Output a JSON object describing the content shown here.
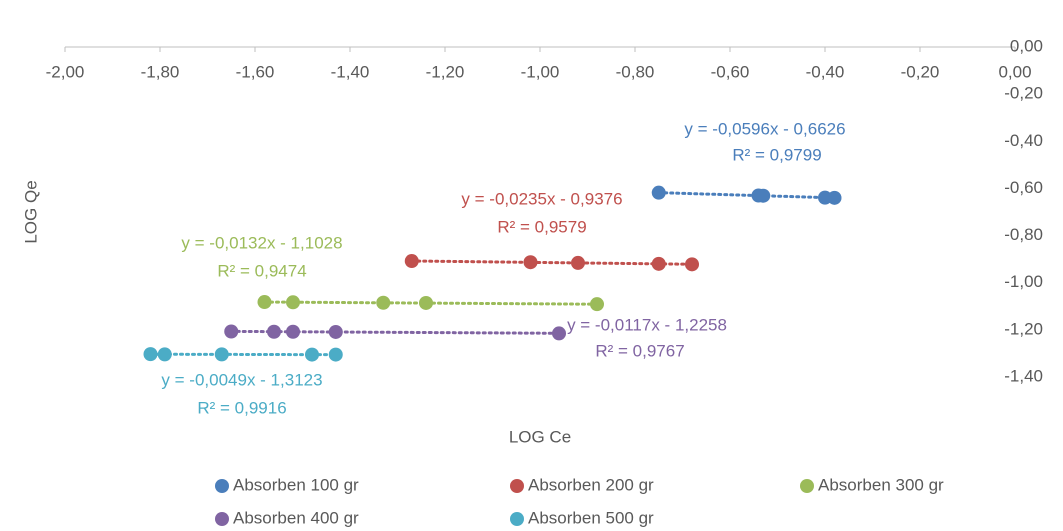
{
  "chart_data": {
    "type": "scatter",
    "xlabel": "LOG Ce",
    "ylabel": "LOG Qe",
    "xlim": [
      -2,
      0
    ],
    "ylim": [
      -1.4,
      0
    ],
    "xticks": [
      {
        "value": -2,
        "label": "-2,00"
      },
      {
        "value": -1.8,
        "label": "-1,80"
      },
      {
        "value": -1.6,
        "label": "-1,60"
      },
      {
        "value": -1.4,
        "label": "-1,40"
      },
      {
        "value": -1.2,
        "label": "-1,20"
      },
      {
        "value": -1,
        "label": "-1,00"
      },
      {
        "value": -0.8,
        "label": "-0,80"
      },
      {
        "value": -0.6,
        "label": "-0,60"
      },
      {
        "value": -0.4,
        "label": "-0,40"
      },
      {
        "value": -0.2,
        "label": "-0,20"
      },
      {
        "value": 0,
        "label": "0,00"
      }
    ],
    "yticks": [
      {
        "value": 0,
        "label": "0,00"
      },
      {
        "value": -0.2,
        "label": "-0,20"
      },
      {
        "value": -0.4,
        "label": "-0,40"
      },
      {
        "value": -0.6,
        "label": "-0,60"
      },
      {
        "value": -0.8,
        "label": "-0,80"
      },
      {
        "value": -1,
        "label": "-1,00"
      },
      {
        "value": -1.2,
        "label": "-1,20"
      },
      {
        "value": -1.4,
        "label": "-1,40"
      }
    ],
    "legend": "bottom",
    "series": [
      {
        "name": "Absorben 100 gr",
        "color": "#4a7ebb",
        "x": [
          -0.75,
          -0.54,
          -0.53,
          -0.4,
          -0.38
        ],
        "values": [
          -0.618,
          -0.63,
          -0.631,
          -0.639,
          -0.64
        ],
        "trendline": {
          "slope": -0.0596,
          "intercept": -0.6626,
          "equation": "y = -0,0596x - 0,6626",
          "r2": "R² = 0,9799"
        }
      },
      {
        "name": "Absorben 200 gr",
        "color": "#c0504d",
        "x": [
          -1.27,
          -1.02,
          -0.92,
          -0.75,
          -0.68
        ],
        "values": [
          -0.908,
          -0.913,
          -0.916,
          -0.92,
          -0.922
        ],
        "trendline": {
          "slope": -0.0235,
          "intercept": -0.9376,
          "equation": "y = -0,0235x - 0,9376",
          "r2": "R² = 0,9579"
        }
      },
      {
        "name": "Absorben 300 gr",
        "color": "#9bbb59",
        "x": [
          -1.58,
          -1.52,
          -1.33,
          -1.24,
          -0.88
        ],
        "values": [
          -1.082,
          -1.083,
          -1.085,
          -1.086,
          -1.091
        ],
        "trendline": {
          "slope": -0.0132,
          "intercept": -1.1028,
          "equation": "y = -0,0132x - 1,1028",
          "r2": "R² = 0,9474"
        }
      },
      {
        "name": "Absorben 400 gr",
        "color": "#8064a2",
        "x": [
          -1.65,
          -1.56,
          -1.52,
          -1.43,
          -0.96
        ],
        "values": [
          -1.207,
          -1.208,
          -1.208,
          -1.209,
          -1.215
        ],
        "trendline": {
          "slope": -0.0117,
          "intercept": -1.2258,
          "equation": "y = -0,0117x - 1,2258",
          "r2": "R² = 0,9767"
        }
      },
      {
        "name": "Absorben 500 gr",
        "color": "#4bacc6",
        "x": [
          -1.82,
          -1.79,
          -1.67,
          -1.48,
          -1.43
        ],
        "values": [
          -1.303,
          -1.304,
          -1.304,
          -1.305,
          -1.305
        ],
        "trendline": {
          "slope": -0.0049,
          "intercept": -1.3123,
          "equation": "y = -0,0049x - 1,3123",
          "r2": "R² = 0,9916"
        }
      }
    ]
  }
}
